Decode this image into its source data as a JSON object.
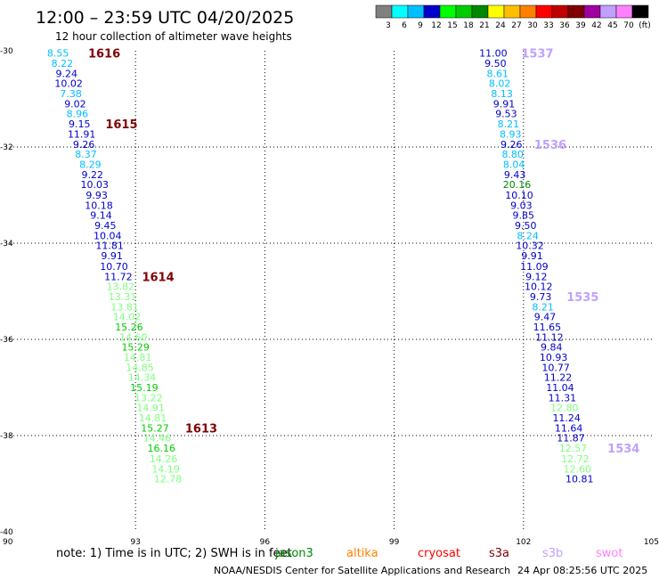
{
  "header": {
    "title": "12:00  –  23:59 UTC 04/20/2025",
    "subtitle": "12 hour collection of altimeter wave heights"
  },
  "colors": {
    "c3": "#808080",
    "c6": "#00ffff",
    "c9": "#00bfff",
    "c12": "#0000cd",
    "c15": "#00ff00",
    "c18": "#00cc00",
    "c21": "#008800",
    "c24": "#ffff00",
    "c27": "#ffbf00",
    "c30": "#ff8000",
    "c33": "#ff0000",
    "c36": "#c00000",
    "c39": "#800000",
    "c42": "#a000a0",
    "c45": "#c0a0ff",
    "c70": "#ff80ff",
    "cmax": "#000000",
    "s6": "#80ff80",
    "pass": "#800000",
    "pass_light": "#c0a0ff"
  },
  "color_scale": {
    "labels": [
      "3",
      "6",
      "9",
      "12",
      "15",
      "18",
      "21",
      "24",
      "27",
      "30",
      "33",
      "36",
      "39",
      "42",
      "45",
      "70"
    ],
    "unit": "(ft)",
    "swatches": [
      "c3",
      "c6",
      "c9",
      "c12",
      "c15",
      "c18",
      "c21",
      "c24",
      "c27",
      "c30",
      "c33",
      "c36",
      "c39",
      "c42",
      "c45",
      "c70",
      "cmax"
    ]
  },
  "axes": {
    "x_ticks": [
      "90",
      "93",
      "96",
      "99",
      "102",
      "105"
    ],
    "y_ticks": [
      "-30",
      "-32",
      "-34",
      "-36",
      "-38",
      "-40"
    ],
    "lon_min": 90,
    "lon_max": 105,
    "lat_min": -40,
    "lat_max": -30
  },
  "tracks": [
    {
      "points": [
        {
          "lon": 91.2,
          "lat": -30.05,
          "v": "8.55",
          "c": "c9"
        },
        {
          "lon": 91.3,
          "lat": -30.26,
          "v": "8.22",
          "c": "c9"
        },
        {
          "lon": 91.4,
          "lat": -30.47,
          "v": "9.24",
          "c": "c12"
        },
        {
          "lon": 91.45,
          "lat": -30.68,
          "v": "10.02",
          "c": "c12"
        },
        {
          "lon": 91.5,
          "lat": -30.89,
          "v": "7.38",
          "c": "c9"
        },
        {
          "lon": 91.6,
          "lat": -31.1,
          "v": "9.02",
          "c": "c12"
        },
        {
          "lon": 91.65,
          "lat": -31.31,
          "v": "8.96",
          "c": "c9"
        },
        {
          "lon": 91.7,
          "lat": -31.52,
          "v": "9.15",
          "c": "c12"
        },
        {
          "lon": 91.75,
          "lat": -31.73,
          "v": "11.91",
          "c": "c12"
        },
        {
          "lon": 91.8,
          "lat": -31.94,
          "v": "9.26",
          "c": "c12"
        },
        {
          "lon": 91.85,
          "lat": -32.15,
          "v": "8.37",
          "c": "c9"
        },
        {
          "lon": 91.95,
          "lat": -32.36,
          "v": "8.29",
          "c": "c9"
        },
        {
          "lon": 92.0,
          "lat": -32.57,
          "v": "9.22",
          "c": "c12"
        },
        {
          "lon": 92.05,
          "lat": -32.78,
          "v": "10.03",
          "c": "c12"
        },
        {
          "lon": 92.1,
          "lat": -33.0,
          "v": "9.93",
          "c": "c12"
        },
        {
          "lon": 92.15,
          "lat": -33.21,
          "v": "10.18",
          "c": "c12"
        },
        {
          "lon": 92.2,
          "lat": -33.42,
          "v": "9.14",
          "c": "c12"
        },
        {
          "lon": 92.3,
          "lat": -33.63,
          "v": "9.45",
          "c": "c12"
        },
        {
          "lon": 92.35,
          "lat": -33.84,
          "v": "10.04",
          "c": "c12"
        },
        {
          "lon": 92.4,
          "lat": -34.05,
          "v": "11.81",
          "c": "c12"
        },
        {
          "lon": 92.45,
          "lat": -34.26,
          "v": "9.91",
          "c": "c12"
        },
        {
          "lon": 92.5,
          "lat": -34.48,
          "v": "10.70",
          "c": "c12"
        },
        {
          "lon": 92.6,
          "lat": -34.69,
          "v": "11.72",
          "c": "c12"
        },
        {
          "lon": 92.65,
          "lat": -34.9,
          "v": "13.82",
          "c": "s6"
        },
        {
          "lon": 92.7,
          "lat": -35.11,
          "v": "13.31",
          "c": "s6"
        },
        {
          "lon": 92.75,
          "lat": -35.32,
          "v": "13.81",
          "c": "s6"
        },
        {
          "lon": 92.8,
          "lat": -35.53,
          "v": "14.02",
          "c": "s6"
        },
        {
          "lon": 92.85,
          "lat": -35.74,
          "v": "15.26",
          "c": "c18"
        },
        {
          "lon": 92.95,
          "lat": -35.95,
          "v": "14.60",
          "c": "s6"
        },
        {
          "lon": 93.0,
          "lat": -36.16,
          "v": "15.29",
          "c": "c18"
        },
        {
          "lon": 93.05,
          "lat": -36.37,
          "v": "14.81",
          "c": "s6"
        },
        {
          "lon": 93.1,
          "lat": -36.58,
          "v": "14.85",
          "c": "s6"
        },
        {
          "lon": 93.15,
          "lat": -36.79,
          "v": "14.34",
          "c": "s6"
        },
        {
          "lon": 93.2,
          "lat": -37.0,
          "v": "15.19",
          "c": "c18"
        },
        {
          "lon": 93.3,
          "lat": -37.21,
          "v": "13.22",
          "c": "s6"
        },
        {
          "lon": 93.35,
          "lat": -37.42,
          "v": "14.91",
          "c": "s6"
        },
        {
          "lon": 93.4,
          "lat": -37.63,
          "v": "14.81",
          "c": "s6"
        },
        {
          "lon": 93.45,
          "lat": -37.84,
          "v": "15.27",
          "c": "c18"
        },
        {
          "lon": 93.5,
          "lat": -38.05,
          "v": "14.46",
          "c": "s6"
        },
        {
          "lon": 93.6,
          "lat": -38.26,
          "v": "16.16",
          "c": "c18"
        },
        {
          "lon": 93.65,
          "lat": -38.48,
          "v": "14.26",
          "c": "s6"
        },
        {
          "lon": 93.7,
          "lat": -38.69,
          "v": "14.19",
          "c": "s6"
        },
        {
          "lon": 93.75,
          "lat": -38.9,
          "v": "12.78",
          "c": "s6"
        }
      ]
    },
    {
      "points": [
        {
          "lon": 101.3,
          "lat": -30.05,
          "v": "11.00",
          "c": "c12"
        },
        {
          "lon": 101.35,
          "lat": -30.26,
          "v": "9.50",
          "c": "c12"
        },
        {
          "lon": 101.4,
          "lat": -30.47,
          "v": "8.61",
          "c": "c9"
        },
        {
          "lon": 101.45,
          "lat": -30.68,
          "v": "8.02",
          "c": "c9"
        },
        {
          "lon": 101.5,
          "lat": -30.89,
          "v": "8.13",
          "c": "c9"
        },
        {
          "lon": 101.55,
          "lat": -31.1,
          "v": "9.91",
          "c": "c12"
        },
        {
          "lon": 101.6,
          "lat": -31.31,
          "v": "9.53",
          "c": "c12"
        },
        {
          "lon": 101.65,
          "lat": -31.52,
          "v": "8.21",
          "c": "c9"
        },
        {
          "lon": 101.7,
          "lat": -31.73,
          "v": "8.93",
          "c": "c9"
        },
        {
          "lon": 101.72,
          "lat": -31.94,
          "v": "9.26",
          "c": "c12"
        },
        {
          "lon": 101.75,
          "lat": -32.15,
          "v": "8.80",
          "c": "c9"
        },
        {
          "lon": 101.78,
          "lat": -32.36,
          "v": "8.04",
          "c": "c9"
        },
        {
          "lon": 101.8,
          "lat": -32.57,
          "v": "9.43",
          "c": "c12"
        },
        {
          "lon": 101.85,
          "lat": -32.78,
          "v": "20.16",
          "c": "c21"
        },
        {
          "lon": 101.9,
          "lat": -33.0,
          "v": "10.10",
          "c": "c12"
        },
        {
          "lon": 101.95,
          "lat": -33.21,
          "v": "9.03",
          "c": "c12"
        },
        {
          "lon": 102.0,
          "lat": -33.42,
          "v": "9.85",
          "c": "c12"
        },
        {
          "lon": 102.05,
          "lat": -33.63,
          "v": "9.50",
          "c": "c12"
        },
        {
          "lon": 102.1,
          "lat": -33.84,
          "v": "8.24",
          "c": "c9"
        },
        {
          "lon": 102.15,
          "lat": -34.05,
          "v": "10.32",
          "c": "c12"
        },
        {
          "lon": 102.2,
          "lat": -34.26,
          "v": "9.91",
          "c": "c12"
        },
        {
          "lon": 102.25,
          "lat": -34.48,
          "v": "11.09",
          "c": "c12"
        },
        {
          "lon": 102.3,
          "lat": -34.69,
          "v": "9.12",
          "c": "c12"
        },
        {
          "lon": 102.35,
          "lat": -34.9,
          "v": "10.12",
          "c": "c12"
        },
        {
          "lon": 102.4,
          "lat": -35.11,
          "v": "9.73",
          "c": "c12"
        },
        {
          "lon": 102.45,
          "lat": -35.32,
          "v": "8.21",
          "c": "c9"
        },
        {
          "lon": 102.5,
          "lat": -35.53,
          "v": "9.47",
          "c": "c12"
        },
        {
          "lon": 102.55,
          "lat": -35.74,
          "v": "11.65",
          "c": "c12"
        },
        {
          "lon": 102.6,
          "lat": -35.95,
          "v": "11.12",
          "c": "c12"
        },
        {
          "lon": 102.65,
          "lat": -36.16,
          "v": "9.84",
          "c": "c12"
        },
        {
          "lon": 102.7,
          "lat": -36.37,
          "v": "10.93",
          "c": "c12"
        },
        {
          "lon": 102.75,
          "lat": -36.58,
          "v": "10.77",
          "c": "c12"
        },
        {
          "lon": 102.8,
          "lat": -36.79,
          "v": "11.22",
          "c": "c12"
        },
        {
          "lon": 102.85,
          "lat": -37.0,
          "v": "11.04",
          "c": "c12"
        },
        {
          "lon": 102.9,
          "lat": -37.21,
          "v": "11.31",
          "c": "c12"
        },
        {
          "lon": 102.95,
          "lat": -37.42,
          "v": "12.80",
          "c": "s6"
        },
        {
          "lon": 103.0,
          "lat": -37.63,
          "v": "11.24",
          "c": "c12"
        },
        {
          "lon": 103.05,
          "lat": -37.84,
          "v": "11.64",
          "c": "c12"
        },
        {
          "lon": 103.1,
          "lat": -38.05,
          "v": "11.87",
          "c": "c12"
        },
        {
          "lon": 103.15,
          "lat": -38.26,
          "v": "12.57",
          "c": "s6"
        },
        {
          "lon": 103.2,
          "lat": -38.48,
          "v": "12.72",
          "c": "s6"
        },
        {
          "lon": 103.25,
          "lat": -38.69,
          "v": "12.60",
          "c": "s6"
        },
        {
          "lon": 103.3,
          "lat": -38.9,
          "v": "10.81",
          "c": "c12"
        }
      ]
    }
  ],
  "pass_labels": [
    {
      "text": "1616",
      "lon": 91.9,
      "lat": -30.05,
      "c": "pass"
    },
    {
      "text": "1615",
      "lon": 92.3,
      "lat": -31.52,
      "c": "pass"
    },
    {
      "text": "1614",
      "lon": 93.15,
      "lat": -34.69,
      "c": "pass"
    },
    {
      "text": "1613",
      "lon": 94.15,
      "lat": -37.84,
      "c": "pass"
    },
    {
      "text": "1537",
      "lon": 101.95,
      "lat": -30.05,
      "c": "pass_light"
    },
    {
      "text": "1536",
      "lon": 102.25,
      "lat": -31.94,
      "c": "pass_light"
    },
    {
      "text": "1535",
      "lon": 103.0,
      "lat": -35.11,
      "c": "pass_light"
    },
    {
      "text": "1534",
      "lon": 103.95,
      "lat": -38.26,
      "c": "pass_light"
    }
  ],
  "note": {
    "text": "note:  1) Time is in UTC; 2) SWH is in feet",
    "satellites": [
      {
        "name": "jason3",
        "color": "#008800"
      },
      {
        "name": "altika",
        "color": "#ff8000"
      },
      {
        "name": "cryosat",
        "color": "#ff0000"
      },
      {
        "name": "s3a",
        "color": "#800000"
      },
      {
        "name": "s3b",
        "color": "#c0a0ff"
      },
      {
        "name": "swot",
        "color": "#ff80ff"
      }
    ]
  },
  "footer": {
    "credit": "NOAA/NESDIS Center for Satellite Applications and Research",
    "timestamp": "24 Apr 08:25:56 UTC 2025"
  }
}
